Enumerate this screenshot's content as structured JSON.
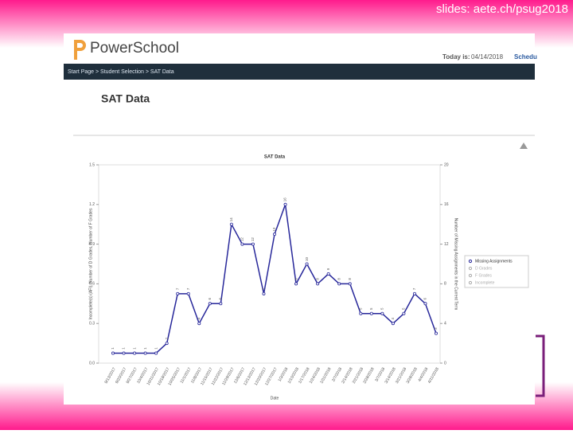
{
  "slide": {
    "link": "slides: aete.ch/psug2018"
  },
  "header": {
    "logo": "PowerSchool",
    "today_label": "Today is:",
    "today": "04/14/2018",
    "schedule": "Schedu"
  },
  "breadcrumb": "Start Page > Student Selection > SAT Data",
  "page_title": "SAT Data",
  "chart_data": {
    "type": "line",
    "title": "SAT Data",
    "x_label": "Date",
    "y_label": "Incomplete(s) (AFI), Number of D Grades, Number of F Grades",
    "y2_label": "Number of Missing Assignments in the Current Term",
    "categories": [
      "9/13/2017",
      "9/20/2017",
      "9/27/2017",
      "10/4/2017",
      "10/11/2017",
      "10/18/2017",
      "10/25/2017",
      "11/1/2017",
      "11/8/2017",
      "11/15/2017",
      "11/22/2017",
      "11/29/2017",
      "12/6/2017",
      "12/13/2017",
      "12/20/2017",
      "12/27/2017",
      "1/3/2018",
      "1/10/2018",
      "1/17/2018",
      "1/24/2018",
      "1/31/2018",
      "2/7/2018",
      "2/14/2018",
      "2/21/2018",
      "2/28/2018",
      "3/7/2018",
      "3/14/2018",
      "3/21/2018",
      "3/28/2018",
      "4/4/2018",
      "4/11/2018"
    ],
    "series": [
      {
        "name": "Missing Assignments",
        "color": "#27279a",
        "axis": "y2",
        "values": [
          1,
          1,
          1,
          1,
          1,
          2,
          7,
          7,
          4,
          6,
          6,
          14,
          12,
          12,
          7,
          13,
          16,
          8,
          10,
          8,
          9,
          8,
          8,
          5,
          5,
          5,
          4,
          5,
          7,
          6,
          3
        ]
      }
    ],
    "legend": [
      "Missing Assignments",
      "D Grades",
      "F Grades",
      "Incomplete"
    ],
    "ylim": [
      0,
      1.5
    ],
    "yticks": [
      {
        "value": 0,
        "label": "0.0"
      },
      0.3,
      0.6,
      0.9,
      1.2,
      1.5
    ],
    "y2lim": [
      0,
      20
    ],
    "y2ticks": [
      0,
      4,
      8,
      12,
      16,
      20
    ]
  }
}
